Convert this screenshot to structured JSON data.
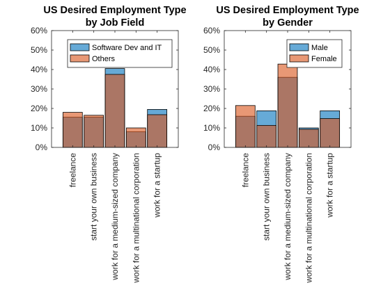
{
  "chart_data": [
    {
      "type": "bar",
      "title": [
        "US Desired Employment Type",
        "by Job Field"
      ],
      "categories": [
        "freelance",
        "start your own business",
        "work for a medium-sized company",
        "work for a multinational corporation",
        "work for a startup"
      ],
      "ylim": [
        0,
        60
      ],
      "yticks": [
        "0%",
        "10%",
        "20%",
        "30%",
        "40%",
        "50%",
        "60%"
      ],
      "legend_position": "top-right",
      "series": [
        {
          "name": "Software Dev and IT",
          "color": "#0072BD",
          "values": [
            15.5,
            15.5,
            40.5,
            8.0,
            19.5
          ]
        },
        {
          "name": "Others",
          "color": "#D95319",
          "values": [
            18.0,
            16.5,
            37.5,
            10.0,
            16.8
          ]
        }
      ]
    },
    {
      "type": "bar",
      "title": [
        "US Desired Employment Type",
        "by Gender"
      ],
      "categories": [
        "freelance",
        "start your own business",
        "work for a medium-sized company",
        "work for a multinational corporation",
        "work for a startup"
      ],
      "ylim": [
        0,
        60
      ],
      "yticks": [
        "0%",
        "10%",
        "20%",
        "30%",
        "40%",
        "50%",
        "60%"
      ],
      "legend_position": "top-right",
      "series": [
        {
          "name": "Male",
          "color": "#0072BD",
          "values": [
            16.0,
            18.8,
            36.0,
            10.0,
            18.8
          ]
        },
        {
          "name": "Female",
          "color": "#D95319",
          "values": [
            21.5,
            11.3,
            42.8,
            9.3,
            14.8
          ]
        }
      ]
    }
  ]
}
